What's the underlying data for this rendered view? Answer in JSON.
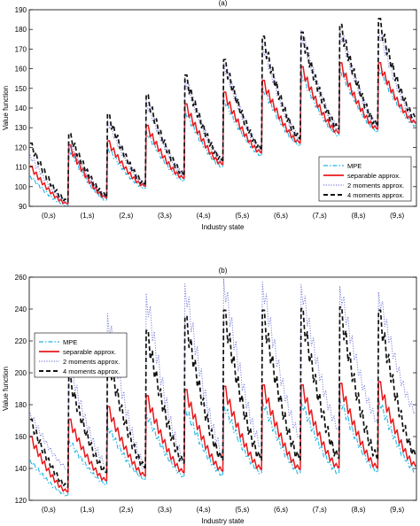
{
  "chart_data": [
    {
      "type": "line",
      "title": "(a)",
      "xlabel": "Industry state",
      "ylabel": "Value function",
      "ylim": [
        90,
        190
      ],
      "yticks": [
        90,
        100,
        110,
        120,
        130,
        140,
        150,
        160,
        170,
        180,
        190
      ],
      "categories": [
        "(0,s)",
        "(1,s)",
        "(2,s)",
        "(3,s)",
        "(4,s)",
        "(5,s)",
        "(6,s)",
        "(7,s)",
        "(8,s)",
        "(9,s)"
      ],
      "legend_position": "bottom-right",
      "grid": false,
      "series": [
        {
          "name": "MPE",
          "color": "#1fb5e6",
          "style": "dash-dot",
          "segments": [
            [
              106,
              90
            ],
            [
              121,
              93
            ],
            [
              121,
              99
            ],
            [
              129,
              103
            ],
            [
              140,
              110
            ],
            [
              146,
              116
            ],
            [
              152,
              121
            ],
            [
              159,
              126
            ],
            [
              162,
              128
            ],
            [
              162,
              131
            ]
          ]
        },
        {
          "name": "separable approx.",
          "color": "#e8191c",
          "style": "solid",
          "segments": [
            [
              111,
              91
            ],
            [
              122,
              94
            ],
            [
              124,
              100
            ],
            [
              132,
              104
            ],
            [
              143,
              111
            ],
            [
              149,
              117
            ],
            [
              155,
              122
            ],
            [
              162,
              127
            ],
            [
              164,
              129
            ],
            [
              164,
              132
            ]
          ]
        },
        {
          "name": "2 moments approx.",
          "color": "#7b7fd6",
          "style": "dotted",
          "segments": [
            [
              117,
              92
            ],
            [
              124,
              95
            ],
            [
              135,
              101
            ],
            [
              145,
              106
            ],
            [
              157,
              113
            ],
            [
              165,
              119
            ],
            [
              175,
              124
            ],
            [
              181,
              129
            ],
            [
              182,
              131
            ],
            [
              182,
              133
            ]
          ]
        },
        {
          "name": "4 moments approx.",
          "color": "#111111",
          "style": "dashed",
          "segments": [
            [
              123,
              92
            ],
            [
              128,
              95
            ],
            [
              138,
              101
            ],
            [
              148,
              106
            ],
            [
              158,
              113
            ],
            [
              166,
              119
            ],
            [
              178,
              124
            ],
            [
              180,
              129
            ],
            [
              184,
              131
            ],
            [
              187,
              134
            ]
          ]
        }
      ]
    },
    {
      "type": "line",
      "title": "(b)",
      "xlabel": "Industry state",
      "ylabel": "Value function",
      "ylim": [
        120,
        260
      ],
      "yticks": [
        120,
        140,
        160,
        180,
        200,
        220,
        240,
        260
      ],
      "categories": [
        "(0,s)",
        "(1,s)",
        "(2,s)",
        "(3,s)",
        "(4,s)",
        "(5,s)",
        "(6,s)",
        "(7,s)",
        "(8,s)",
        "(9,s)"
      ],
      "legend_position": "top-left",
      "grid": false,
      "series": [
        {
          "name": "MPE",
          "color": "#1fb5e6",
          "style": "dash-dot",
          "segments": [
            [
              146,
              123
            ],
            [
              159,
              130
            ],
            [
              168,
              133
            ],
            [
              176,
              135
            ],
            [
              180,
              136
            ],
            [
              182,
              137
            ],
            [
              184,
              137
            ],
            [
              184,
              137
            ],
            [
              185,
              138
            ],
            [
              185,
              138
            ]
          ]
        },
        {
          "name": "separable approx.",
          "color": "#e8191c",
          "style": "solid",
          "segments": [
            [
              161,
              125
            ],
            [
              172,
              132
            ],
            [
              180,
              135
            ],
            [
              187,
              137
            ],
            [
              191,
              138
            ],
            [
              193,
              139
            ],
            [
              194,
              139
            ],
            [
              194,
              140
            ],
            [
              195,
              140
            ],
            [
              196,
              141
            ]
          ]
        },
        {
          "name": "2 moments approx.",
          "color": "#7b7fd6",
          "style": "dotted",
          "segments": [
            [
              176,
              140
            ],
            [
              209,
              142
            ],
            [
              240,
              140
            ],
            [
              253,
              145
            ],
            [
              259,
              150
            ],
            [
              262,
              154
            ],
            [
              260,
              160
            ],
            [
              258,
              165
            ],
            [
              257,
              170
            ],
            [
              253,
              175
            ]
          ]
        },
        {
          "name": "4 moments approx.",
          "color": "#111111",
          "style": "dashed",
          "segments": [
            [
              172,
              128
            ],
            [
              199,
              137
            ],
            [
              213,
              140
            ],
            [
              229,
              143
            ],
            [
              238,
              145
            ],
            [
              242,
              145
            ],
            [
              242,
              145
            ],
            [
              243,
              146
            ],
            [
              244,
              146
            ],
            [
              242,
              147
            ]
          ]
        }
      ]
    }
  ]
}
